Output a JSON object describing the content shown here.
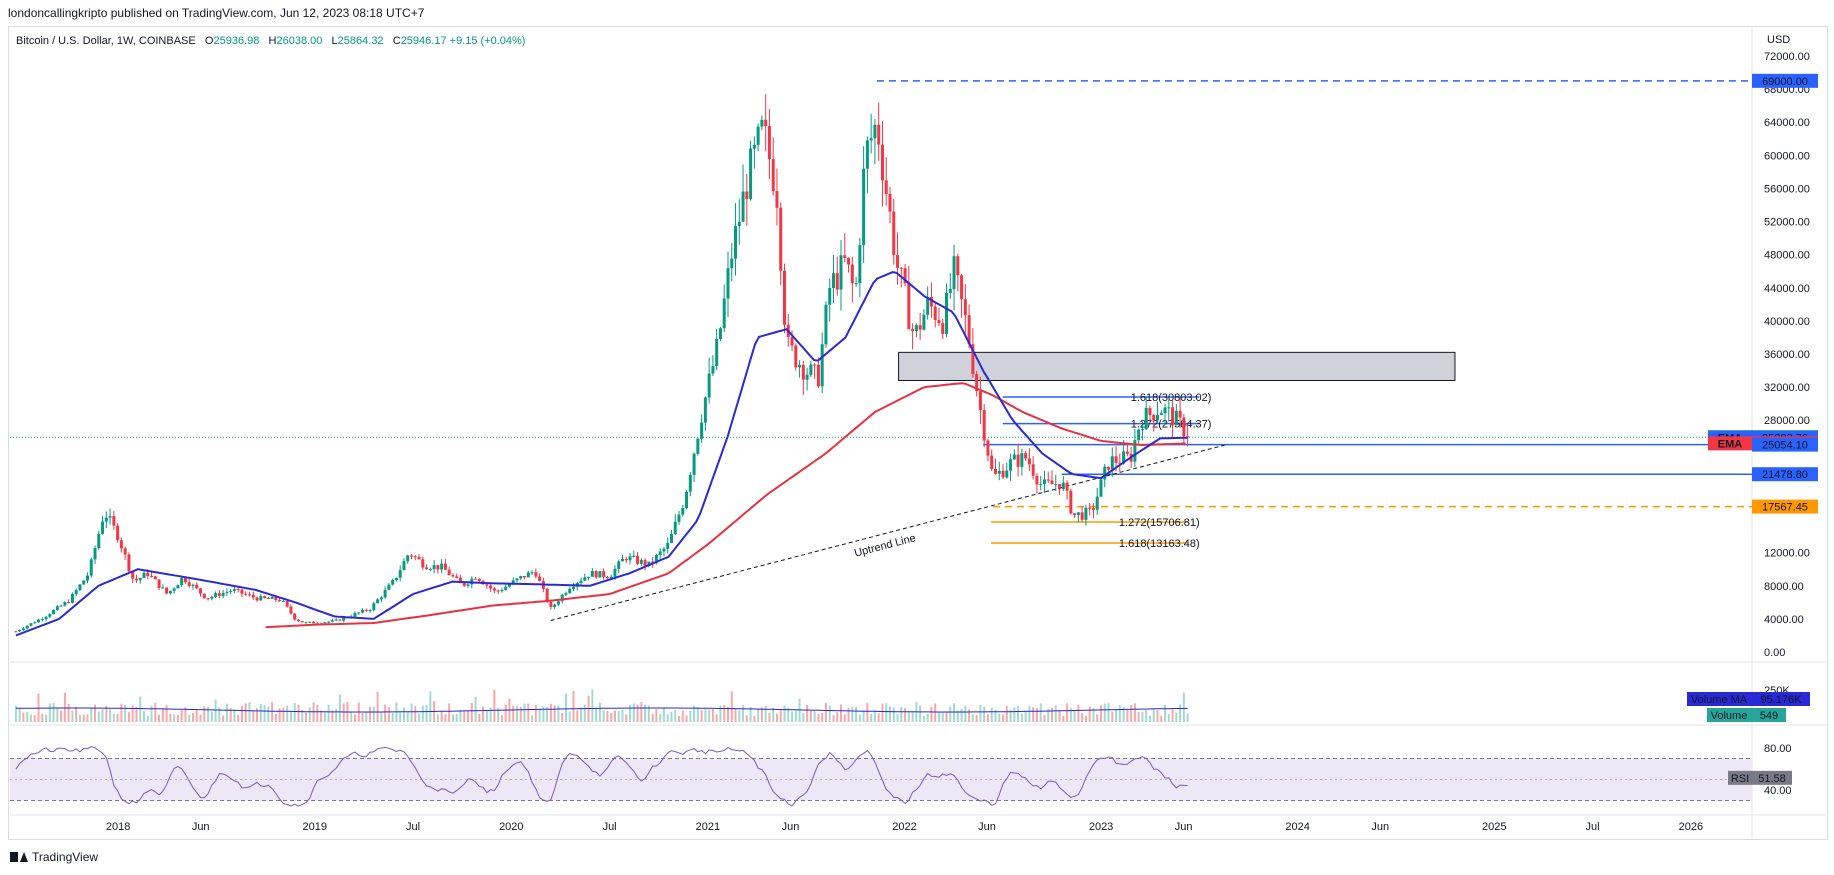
{
  "header": {
    "published": "londoncallingkripto published on TradingView.com, Jun 12, 2023 08:18 UTC+7",
    "symbol": "Bitcoin / U.S. Dollar, 1W, COINBASE",
    "ohlc": [
      {
        "k": "O",
        "v": "25936.98"
      },
      {
        "k": "H",
        "v": "26038.00"
      },
      {
        "k": "L",
        "v": "25864.32"
      },
      {
        "k": "C",
        "v": "25946.17"
      }
    ],
    "change": "+9.15 (+0.04%)"
  },
  "footer": {
    "brand": "TradingView"
  },
  "chart_data": {
    "type": "candlestick",
    "currency": "USD",
    "ylim": [
      0,
      72000
    ],
    "y_ticks": [
      "72000.00",
      "68000.00",
      "64000.00",
      "60000.00",
      "56000.00",
      "52000.00",
      "48000.00",
      "44000.00",
      "40000.00",
      "36000.00",
      "32000.00",
      "28000.00",
      "24000.00",
      "20000.00",
      "16000.00",
      "12000.00",
      "8000.00",
      "4000.00",
      "0.00"
    ],
    "x_ticks": [
      {
        "t": 2018.0,
        "label": "2018"
      },
      {
        "t": 2018.42,
        "label": "Jun"
      },
      {
        "t": 2019.0,
        "label": "2019"
      },
      {
        "t": 2019.5,
        "label": "Jul"
      },
      {
        "t": 2020.0,
        "label": "2020"
      },
      {
        "t": 2020.5,
        "label": "Jul"
      },
      {
        "t": 2021.0,
        "label": "2021"
      },
      {
        "t": 2021.42,
        "label": "Jun"
      },
      {
        "t": 2022.0,
        "label": "2022"
      },
      {
        "t": 2022.42,
        "label": "Jun"
      },
      {
        "t": 2023.0,
        "label": "2023"
      },
      {
        "t": 2023.42,
        "label": "Jun"
      },
      {
        "t": 2024.0,
        "label": "2024"
      },
      {
        "t": 2024.42,
        "label": "Jun"
      },
      {
        "t": 2025.0,
        "label": "2025"
      },
      {
        "t": 2025.5,
        "label": "Jul"
      },
      {
        "t": 2026.0,
        "label": "2026"
      }
    ],
    "price_anchors": [
      [
        2017.48,
        2500
      ],
      [
        2017.62,
        4200
      ],
      [
        2017.75,
        6200
      ],
      [
        2017.85,
        9500
      ],
      [
        2017.93,
        17000
      ],
      [
        2018.0,
        14000
      ],
      [
        2018.08,
        8500
      ],
      [
        2018.15,
        9500
      ],
      [
        2018.25,
        7000
      ],
      [
        2018.33,
        9000
      ],
      [
        2018.45,
        6500
      ],
      [
        2018.58,
        7500
      ],
      [
        2018.7,
        6500
      ],
      [
        2018.83,
        6300
      ],
      [
        2018.9,
        4000
      ],
      [
        2018.95,
        3500
      ],
      [
        2019.1,
        3700
      ],
      [
        2019.28,
        5200
      ],
      [
        2019.4,
        8500
      ],
      [
        2019.48,
        12000
      ],
      [
        2019.56,
        10500
      ],
      [
        2019.65,
        10200
      ],
      [
        2019.75,
        8000
      ],
      [
        2019.82,
        9200
      ],
      [
        2019.92,
        7200
      ],
      [
        2020.05,
        9000
      ],
      [
        2020.12,
        9800
      ],
      [
        2020.2,
        5200
      ],
      [
        2020.3,
        8000
      ],
      [
        2020.4,
        9500
      ],
      [
        2020.5,
        9200
      ],
      [
        2020.58,
        11500
      ],
      [
        2020.7,
        10500
      ],
      [
        2020.8,
        13000
      ],
      [
        2020.88,
        18500
      ],
      [
        2020.97,
        29000
      ],
      [
        2021.05,
        37000
      ],
      [
        2021.12,
        48000
      ],
      [
        2021.2,
        57000
      ],
      [
        2021.28,
        63000
      ],
      [
        2021.35,
        56000
      ],
      [
        2021.4,
        37000
      ],
      [
        2021.5,
        34000
      ],
      [
        2021.56,
        33000
      ],
      [
        2021.62,
        44000
      ],
      [
        2021.7,
        47000
      ],
      [
        2021.75,
        43000
      ],
      [
        2021.8,
        60000
      ],
      [
        2021.86,
        64000
      ],
      [
        2021.9,
        57000
      ],
      [
        2021.96,
        47000
      ],
      [
        2022.05,
        38000
      ],
      [
        2022.12,
        42000
      ],
      [
        2022.2,
        40000
      ],
      [
        2022.25,
        46000
      ],
      [
        2022.32,
        39000
      ],
      [
        2022.38,
        30000
      ],
      [
        2022.45,
        21000
      ],
      [
        2022.55,
        23000
      ],
      [
        2022.62,
        23500
      ],
      [
        2022.7,
        20000
      ],
      [
        2022.8,
        20500
      ],
      [
        2022.86,
        16500
      ],
      [
        2022.95,
        16800
      ],
      [
        2023.04,
        23000
      ],
      [
        2023.15,
        23500
      ],
      [
        2023.2,
        28000
      ],
      [
        2023.3,
        29500
      ],
      [
        2023.36,
        28500
      ],
      [
        2023.42,
        27000
      ],
      [
        2023.44,
        25946
      ]
    ],
    "ema_blue": [
      [
        2017.48,
        2000
      ],
      [
        2017.7,
        4000
      ],
      [
        2017.9,
        8000
      ],
      [
        2018.1,
        10000
      ],
      [
        2018.4,
        8800
      ],
      [
        2018.7,
        7500
      ],
      [
        2018.9,
        6000
      ],
      [
        2019.1,
        4300
      ],
      [
        2019.3,
        4000
      ],
      [
        2019.5,
        7000
      ],
      [
        2019.7,
        8500
      ],
      [
        2019.9,
        8300
      ],
      [
        2020.1,
        8200
      ],
      [
        2020.4,
        8000
      ],
      [
        2020.6,
        9500
      ],
      [
        2020.8,
        11500
      ],
      [
        2020.95,
        16000
      ],
      [
        2021.1,
        26000
      ],
      [
        2021.25,
        38000
      ],
      [
        2021.4,
        39000
      ],
      [
        2021.55,
        35000
      ],
      [
        2021.7,
        38000
      ],
      [
        2021.85,
        45000
      ],
      [
        2021.95,
        46000
      ],
      [
        2022.1,
        43000
      ],
      [
        2022.25,
        41000
      ],
      [
        2022.4,
        34000
      ],
      [
        2022.55,
        28000
      ],
      [
        2022.7,
        24000
      ],
      [
        2022.85,
        21500
      ],
      [
        2023.0,
        21000
      ],
      [
        2023.15,
        23500
      ],
      [
        2023.3,
        25800
      ],
      [
        2023.44,
        25883.76
      ]
    ],
    "ema_red": [
      [
        2018.75,
        3000
      ],
      [
        2019.0,
        3300
      ],
      [
        2019.3,
        3500
      ],
      [
        2019.6,
        4500
      ],
      [
        2019.9,
        5600
      ],
      [
        2020.2,
        6200
      ],
      [
        2020.5,
        7000
      ],
      [
        2020.8,
        9500
      ],
      [
        2021.0,
        13000
      ],
      [
        2021.3,
        19000
      ],
      [
        2021.6,
        24000
      ],
      [
        2021.85,
        29000
      ],
      [
        2022.1,
        32000
      ],
      [
        2022.3,
        32500
      ],
      [
        2022.45,
        31000
      ],
      [
        2022.6,
        29000
      ],
      [
        2022.8,
        27000
      ],
      [
        2023.0,
        25500
      ],
      [
        2023.2,
        25000
      ],
      [
        2023.44,
        25205.39
      ]
    ],
    "horizontal_levels": [
      {
        "price": 69000,
        "style": "dashed",
        "color": "#2962ff",
        "from": 2021.86
      },
      {
        "price": 25054.1,
        "style": "solid",
        "color": "#2962ff",
        "from": 2022.4
      },
      {
        "price": 21478.8,
        "style": "solid",
        "color": "#2962ff",
        "from": 2022.8
      },
      {
        "price": 17567.45,
        "style": "dashed",
        "color": "#ff9800",
        "from": 2022.45
      }
    ],
    "fib_levels": [
      {
        "label": "1.618(30803.02)",
        "price": 30803.02,
        "color": "#2962ff",
        "from": 2022.5,
        "to": 2023.5
      },
      {
        "label": "1.272(27584.37)",
        "price": 27584.37,
        "color": "#2962ff",
        "from": 2022.5,
        "to": 2023.5
      },
      {
        "label": "1.272(15706.81)",
        "price": 15706.81,
        "color": "#ff9800",
        "from": 2022.44,
        "to": 2023.44
      },
      {
        "label": "1.618(13163.48)",
        "price": 13163.48,
        "color": "#ff9800",
        "from": 2022.44,
        "to": 2023.44
      }
    ],
    "zone": {
      "from": 2021.97,
      "to": 2024.8,
      "low": 32800,
      "high": 36200
    },
    "uptrend": {
      "label": "Uptrend Line",
      "p1": [
        2020.2,
        3800
      ],
      "p2": [
        2023.63,
        25000
      ]
    },
    "price_labels": [
      {
        "text": "69000.00",
        "price": 69000,
        "bg": "#2962ff",
        "fg": "#ffffff"
      },
      {
        "text": "BTCUSD",
        "price": 25946.17,
        "bg": "#089981",
        "fg": "#ffffff",
        "value": "25946.17"
      },
      {
        "text": "EMA",
        "price": 25883.76,
        "bg": "#2962ff",
        "fg": "#ffffff",
        "value": "25883.76"
      },
      {
        "text": "EMA",
        "price": 25205.39,
        "bg": "#f23645",
        "fg": "#ffffff",
        "value": "25205.39"
      },
      {
        "text": "25054.10",
        "price": 25054.1,
        "bg": "#2962ff",
        "fg": "#ffffff"
      },
      {
        "text": "21478.80",
        "price": 21478.8,
        "bg": "#2962ff",
        "fg": "#ffffff"
      },
      {
        "text": "17567.45",
        "price": 17567.45,
        "bg": "#ff9800",
        "fg": "#131722"
      }
    ],
    "volume": {
      "ma_label": "Volume MA",
      "ma_value": "95.176K",
      "label": "Volume",
      "value": "549",
      "axis_label": "250K"
    },
    "rsi": {
      "label": "RSI",
      "value": "51.58",
      "ticks": [
        "80.00",
        "40.00"
      ],
      "upper": 70,
      "lower": 30
    }
  },
  "colors": {
    "up": "#089981",
    "down": "#f23645",
    "ema_fast": "#2929d6",
    "ema_slow": "#e8313f",
    "rsi": "#7e57c2"
  }
}
